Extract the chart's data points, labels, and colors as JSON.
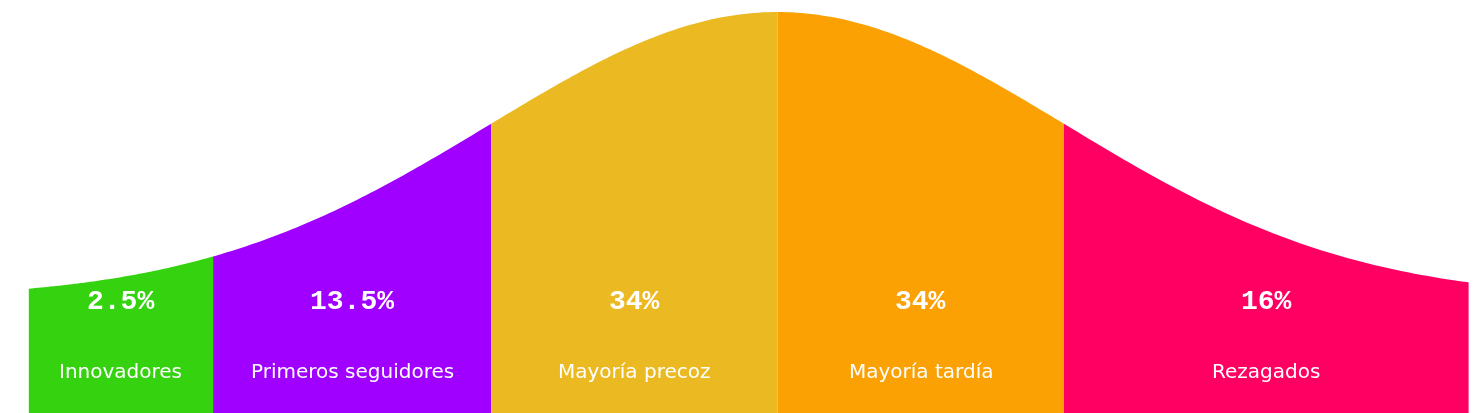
{
  "chart_data": {
    "type": "other",
    "categories": [
      "Innovadores",
      "Primeros seguidores",
      "Mayoría precoz",
      "Mayoría tardía",
      "Rezagados"
    ],
    "values": [
      2.5,
      13.5,
      34,
      34,
      16
    ],
    "value_labels": [
      "2.5%",
      "13.5%",
      "34%",
      "34%",
      "16%"
    ],
    "colors": [
      "#35d20f",
      "#a000ff",
      "#ebb921",
      "#fca104",
      "#ff0062"
    ]
  }
}
